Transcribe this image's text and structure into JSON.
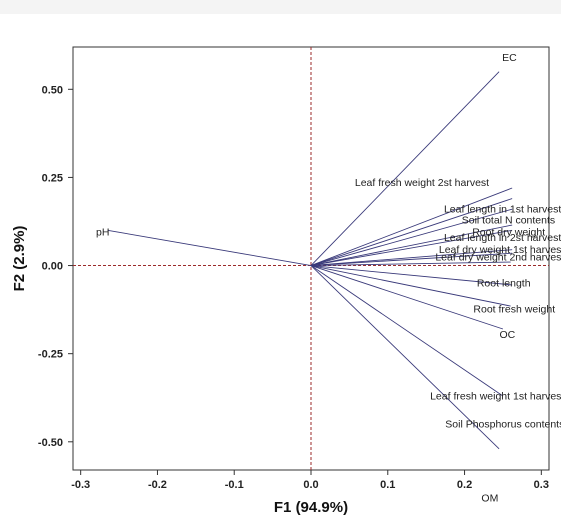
{
  "chart_data": {
    "type": "scatter",
    "subtype": "biplot-vectors",
    "xlabel": "F1 (94.9%)",
    "ylabel": "F2 (2.9%)",
    "xlim": [
      -0.31,
      0.31
    ],
    "ylim": [
      -0.58,
      0.62
    ],
    "xticks": [
      "-0.3",
      "-0.2",
      "-0.1",
      "0.0",
      "0.1",
      "0.2",
      "0.3"
    ],
    "yticks": [
      "0.50",
      "0.25",
      "0.00",
      "-0.25",
      "-0.50"
    ],
    "zero_lines": {
      "color": "#9b2a2a",
      "style": "dashed"
    },
    "vector_color": "#3a3a7a",
    "grid": false,
    "vectors": [
      {
        "name": "EC",
        "x": 0.245,
        "y": 0.55
      },
      {
        "name": "Leaf fresh weight 2st harvest",
        "x": 0.262,
        "y": 0.22
      },
      {
        "name": "Leaf length in 1st harvest",
        "x": 0.262,
        "y": 0.19
      },
      {
        "name": "Soil total N contents",
        "x": 0.262,
        "y": 0.16
      },
      {
        "name": "Root dry weight",
        "x": 0.262,
        "y": 0.115
      },
      {
        "name": "Leaf length in 2st harvest",
        "x": 0.262,
        "y": 0.1
      },
      {
        "name": "Leaf dry weight 1st harvest",
        "x": 0.262,
        "y": 0.045
      },
      {
        "name": "Leaf dry weight 2nd harvest",
        "x": 0.262,
        "y": 0.035
      },
      {
        "name": "pH",
        "x": -0.265,
        "y": 0.1
      },
      {
        "name": "Root length",
        "x": 0.26,
        "y": 0.01
      },
      {
        "name": "Root fresh weight",
        "x": 0.262,
        "y": -0.055
      },
      {
        "name": "OC",
        "x": 0.26,
        "y": -0.115
      },
      {
        "name": "Leaf fresh weight 1st harvest",
        "x": 0.25,
        "y": -0.18
      },
      {
        "name": "Soil Phosphorus contents",
        "x": 0.25,
        "y": -0.37
      },
      {
        "name": "OM",
        "x": 0.245,
        "y": -0.52
      }
    ],
    "label_positions": [
      {
        "x": 0.268,
        "y": 0.58,
        "anchor": "end"
      },
      {
        "x": 0.232,
        "y": 0.225,
        "anchor": "end"
      },
      {
        "x": 0.326,
        "y": 0.15,
        "anchor": "end"
      },
      {
        "x": 0.318,
        "y": 0.12,
        "anchor": "end"
      },
      {
        "x": 0.305,
        "y": 0.085,
        "anchor": "end"
      },
      {
        "x": 0.326,
        "y": 0.07,
        "anchor": "end"
      },
      {
        "x": 0.33,
        "y": 0.035,
        "anchor": "end"
      },
      {
        "x": 0.33,
        "y": 0.015,
        "anchor": "end"
      },
      {
        "x": -0.28,
        "y": 0.085,
        "anchor": "start"
      },
      {
        "x": 0.286,
        "y": -0.06,
        "anchor": "end"
      },
      {
        "x": 0.318,
        "y": -0.133,
        "anchor": "end"
      },
      {
        "x": 0.266,
        "y": -0.205,
        "anchor": "end"
      },
      {
        "x": 0.33,
        "y": -0.38,
        "anchor": "end"
      },
      {
        "x": 0.33,
        "y": -0.46,
        "anchor": "end"
      },
      {
        "x": 0.244,
        "y": -0.67,
        "anchor": "end"
      }
    ]
  }
}
